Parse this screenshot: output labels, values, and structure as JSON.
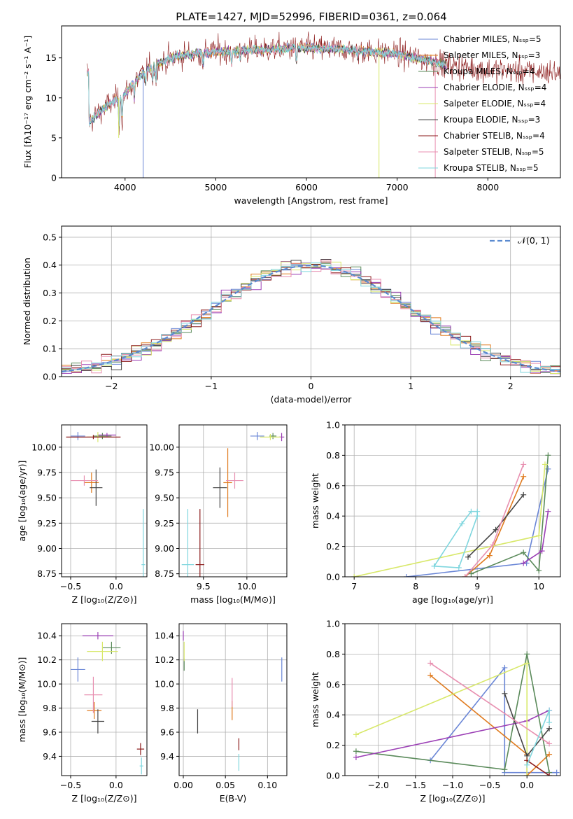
{
  "colors": [
    "#6a86d6",
    "#e07b1f",
    "#5a8a5a",
    "#9b3fb5",
    "#d8e86a",
    "#444444",
    "#8b1a1a",
    "#e88fb0",
    "#7fd6de"
  ],
  "chart_data": [
    {
      "id": "spectrum",
      "type": "line",
      "title": "PLATE=1427, MJD=52996, FIBERID=0361, z=0.064",
      "xlabel": "wavelength [Angstrom, rest frame]",
      "ylabel": "Flux [fλ10⁻¹⁷ erg cm⁻² s⁻¹ A⁻¹]",
      "xlim": [
        3300,
        8800
      ],
      "ylim": [
        0,
        19
      ],
      "xticks": [
        4000,
        5000,
        6000,
        7000,
        8000
      ],
      "yticks": [
        0,
        5,
        10,
        15
      ],
      "legend": "right",
      "series": [
        {
          "name": "Chabrier MILES, Nₛₛₚ=5"
        },
        {
          "name": "Salpeter MILES, Nₛₛₚ=3"
        },
        {
          "name": "Kroupa MILES, Nₛₛₚ=4"
        },
        {
          "name": "Chabrier ELODIE, Nₛₛₚ=4"
        },
        {
          "name": "Salpeter ELODIE, Nₛₛₚ=4"
        },
        {
          "name": "Kroupa ELODIE, Nₛₛₚ=3"
        },
        {
          "name": "Chabrier STELIB, Nₛₛₚ=4"
        },
        {
          "name": "Salpeter STELIB, Nₛₛₚ=5"
        },
        {
          "name": "Kroupa STELIB, Nₛₛₚ=5"
        }
      ],
      "continuum": {
        "x": [
          3600,
          3800,
          4000,
          4100,
          4300,
          4600,
          5000,
          5500,
          6000,
          6500,
          7000,
          7400,
          7600,
          8000,
          8400,
          8800
        ],
        "y": [
          7.0,
          9.0,
          10.5,
          12.0,
          14.0,
          15.3,
          15.8,
          16.0,
          16.3,
          16.0,
          15.5,
          14.5,
          14.0,
          13.5,
          13.3,
          13.2
        ]
      }
    },
    {
      "id": "residuals",
      "type": "line",
      "xlabel": "(data-model)/error",
      "ylabel": "Normed distribution",
      "xlim": [
        -2.5,
        2.5
      ],
      "ylim": [
        0,
        0.54
      ],
      "xticks": [
        -2,
        -1,
        0,
        1,
        2
      ],
      "yticks": [
        0.0,
        0.1,
        0.2,
        0.3,
        0.4,
        0.5
      ],
      "legend": "top-right",
      "gaussian_label": "𝒩(0, 1)"
    },
    {
      "id": "ageZ",
      "type": "scatter",
      "xlabel": "Z [log₁₀(Z/Z⊙)]",
      "ylabel": "age  [log₁₀(age/yr)]",
      "xlim": [
        -0.6,
        0.34
      ],
      "ylim": [
        8.72,
        10.22
      ],
      "xticks": [
        -0.5,
        0.0
      ],
      "yticks": [
        8.75,
        9.0,
        9.25,
        9.5,
        9.75,
        10.0
      ],
      "points": [
        {
          "c": 0,
          "x": -0.42,
          "y": 10.11,
          "xe": 0.08,
          "ye": 0.04
        },
        {
          "c": 1,
          "x": -0.27,
          "y": 9.65,
          "xe": 0.08,
          "ye": 0.1
        },
        {
          "c": 2,
          "x": -0.15,
          "y": 10.11,
          "xe": 0.1,
          "ye": 0.03
        },
        {
          "c": 3,
          "x": -0.1,
          "y": 10.12,
          "xe": 0.1,
          "ye": 0.02
        },
        {
          "c": 4,
          "x": -0.2,
          "y": 10.1,
          "xe": 0.12,
          "ye": 0.05
        },
        {
          "c": 5,
          "x": -0.22,
          "y": 9.6,
          "xe": 0.07,
          "ye": 0.18
        },
        {
          "c": 6,
          "x": -0.25,
          "y": 10.1,
          "xe": 0.3,
          "ye": 0.02
        },
        {
          "c": 7,
          "x": -0.35,
          "y": 9.67,
          "xe": 0.15,
          "ye": 0.05
        },
        {
          "c": 8,
          "x": 0.3,
          "y": 8.84,
          "xe": 0.02,
          "ye": 0.55
        }
      ]
    },
    {
      "id": "ageMass",
      "type": "scatter",
      "xlabel": "mass [log₁₀(M/M⊙)]",
      "xlim": [
        9.22,
        10.46
      ],
      "ylim": [
        8.72,
        10.22
      ],
      "xticks": [
        9.5,
        10.0
      ],
      "yticks": [
        8.75,
        9.0,
        9.25,
        9.5,
        9.75,
        10.0
      ],
      "points": [
        {
          "c": 0,
          "x": 10.12,
          "y": 10.11,
          "xe": 0.08,
          "ye": 0.04
        },
        {
          "c": 1,
          "x": 9.78,
          "y": 9.65,
          "xe": 0.05,
          "ye": 0.34
        },
        {
          "c": 2,
          "x": 10.3,
          "y": 10.11,
          "xe": 0.04,
          "ye": 0.03
        },
        {
          "c": 3,
          "x": 10.4,
          "y": 10.1,
          "xe": 0.03,
          "ye": 0.04
        },
        {
          "c": 4,
          "x": 10.27,
          "y": 10.1,
          "xe": 0.12,
          "ye": 0.03
        },
        {
          "c": 5,
          "x": 9.69,
          "y": 9.6,
          "xe": 0.08,
          "ye": 0.2
        },
        {
          "c": 6,
          "x": 9.46,
          "y": 8.84,
          "xe": 0.05,
          "ye": 0.55
        },
        {
          "c": 7,
          "x": 9.86,
          "y": 9.67,
          "xe": 0.1,
          "ye": 0.08
        },
        {
          "c": 8,
          "x": 9.32,
          "y": 8.84,
          "xe": 0.07,
          "ye": 0.55
        }
      ]
    },
    {
      "id": "weightAge",
      "type": "line",
      "xlabel": "age  [log₁₀(age/yr)]",
      "ylabel": "mass weight",
      "xlim": [
        6.85,
        10.35
      ],
      "ylim": [
        0,
        1.0
      ],
      "xticks": [
        7,
        8,
        9,
        10
      ],
      "yticks": [
        0.0,
        0.2,
        0.4,
        0.6,
        0.8,
        1.0
      ],
      "series": [
        {
          "c": 0,
          "x": [
            7.85,
            9.8,
            10.15
          ],
          "y": [
            0.0,
            0.09,
            0.71
          ]
        },
        {
          "c": 1,
          "x": [
            8.8,
            9.2,
            9.75
          ],
          "y": [
            0.0,
            0.14,
            0.66
          ]
        },
        {
          "c": 2,
          "x": [
            8.9,
            9.75,
            10.0,
            10.15
          ],
          "y": [
            0.02,
            0.16,
            0.04,
            0.8
          ]
        },
        {
          "c": 3,
          "x": [
            9.75,
            10.05,
            10.15
          ],
          "y": [
            0.09,
            0.17,
            0.43
          ]
        },
        {
          "c": 4,
          "x": [
            7.0,
            10.0,
            10.1
          ],
          "y": [
            0.0,
            0.27,
            0.74
          ]
        },
        {
          "c": 5,
          "x": [
            8.85,
            9.3,
            9.75
          ],
          "y": [
            0.13,
            0.31,
            0.54
          ]
        },
        {
          "c": 7,
          "x": [
            8.8,
            9.25,
            9.75
          ],
          "y": [
            0.0,
            0.21,
            0.74
          ]
        },
        {
          "c": 8,
          "x": [
            8.3,
            8.75,
            8.9,
            9.0,
            9.0,
            8.7,
            8.3
          ],
          "y": [
            0.07,
            0.35,
            0.43,
            0.43,
            0.4,
            0.06,
            0.07
          ]
        }
      ]
    },
    {
      "id": "massZ",
      "type": "scatter",
      "xlabel": "Z [log₁₀(Z/Z⊙)]",
      "ylabel": "mass [log₁₀(M/M⊙)]",
      "xlim": [
        -0.6,
        0.34
      ],
      "ylim": [
        9.24,
        10.5
      ],
      "xticks": [
        -0.5,
        0.0
      ],
      "yticks": [
        9.4,
        9.6,
        9.8,
        10.0,
        10.2,
        10.4
      ],
      "points": [
        {
          "c": 0,
          "x": -0.42,
          "y": 10.12,
          "xe": 0.08,
          "ye": 0.1
        },
        {
          "c": 1,
          "x": -0.24,
          "y": 9.78,
          "xe": 0.08,
          "ye": 0.07
        },
        {
          "c": 2,
          "x": -0.05,
          "y": 10.3,
          "xe": 0.1,
          "ye": 0.05
        },
        {
          "c": 3,
          "x": -0.2,
          "y": 10.4,
          "xe": 0.17,
          "ye": 0.03
        },
        {
          "c": 4,
          "x": -0.15,
          "y": 10.27,
          "xe": 0.17,
          "ye": 0.08
        },
        {
          "c": 5,
          "x": -0.2,
          "y": 9.69,
          "xe": 0.07,
          "ye": 0.1
        },
        {
          "c": 6,
          "x": 0.27,
          "y": 9.46,
          "xe": 0.04,
          "ye": 0.05
        },
        {
          "c": 7,
          "x": -0.25,
          "y": 9.91,
          "xe": 0.1,
          "ye": 0.15
        },
        {
          "c": 8,
          "x": 0.28,
          "y": 9.32,
          "xe": 0.02,
          "ye": 0.07
        }
      ]
    },
    {
      "id": "massEbv",
      "type": "scatter",
      "xlabel": "E(B-V)",
      "xlim": [
        -0.005,
        0.123
      ],
      "ylim": [
        9.24,
        10.5
      ],
      "xticks": [
        0.0,
        0.05,
        0.1
      ],
      "yticks": [
        9.4,
        9.6,
        9.8,
        10.0,
        10.2,
        10.4
      ],
      "points": [
        {
          "c": 0,
          "x": 0.117,
          "y": 10.12,
          "xe": 0.0,
          "ye": 0.1
        },
        {
          "c": 1,
          "x": 0.058,
          "y": 9.78,
          "xe": 0.0,
          "ye": 0.08
        },
        {
          "c": 2,
          "x": 0.001,
          "y": 10.16,
          "xe": 0.0,
          "ye": 0.05
        },
        {
          "c": 3,
          "x": 0.0,
          "y": 10.4,
          "xe": 0.0,
          "ye": 0.04
        },
        {
          "c": 4,
          "x": 0.001,
          "y": 10.27,
          "xe": 0.0,
          "ye": 0.08
        },
        {
          "c": 5,
          "x": 0.017,
          "y": 9.69,
          "xe": 0.0,
          "ye": 0.1
        },
        {
          "c": 6,
          "x": 0.066,
          "y": 9.5,
          "xe": 0.0,
          "ye": 0.05
        },
        {
          "c": 7,
          "x": 0.058,
          "y": 9.93,
          "xe": 0.0,
          "ye": 0.12
        },
        {
          "c": 8,
          "x": 0.066,
          "y": 9.35,
          "xe": 0.0,
          "ye": 0.07
        }
      ]
    },
    {
      "id": "weightZ",
      "type": "line",
      "xlabel": "Z [log₁₀(Z/Z⊙)]",
      "ylabel": "mass weight",
      "xlim": [
        -2.45,
        0.45
      ],
      "ylim": [
        0,
        1.0
      ],
      "xticks": [
        -2.0,
        -1.5,
        -1.0,
        -0.5,
        0.0
      ],
      "yticks": [
        0.0,
        0.2,
        0.4,
        0.6,
        0.8,
        1.0
      ],
      "series": [
        {
          "c": 0,
          "x": [
            -1.3,
            -0.3,
            -0.3,
            0.4
          ],
          "y": [
            0.1,
            0.71,
            0.02,
            0.02
          ]
        },
        {
          "c": 1,
          "x": [
            -1.3,
            0.0,
            0.0,
            0.3
          ],
          "y": [
            0.66,
            0.14,
            0.0,
            0.14
          ]
        },
        {
          "c": 2,
          "x": [
            -2.3,
            -0.3,
            0.0,
            0.3
          ],
          "y": [
            0.16,
            0.04,
            0.8,
            0.02
          ]
        },
        {
          "c": 3,
          "x": [
            -2.3,
            0.0,
            0.3
          ],
          "y": [
            0.12,
            0.36,
            0.43
          ]
        },
        {
          "c": 4,
          "x": [
            -2.3,
            0.0,
            0.0
          ],
          "y": [
            0.27,
            0.74,
            0.0
          ]
        },
        {
          "c": 5,
          "x": [
            -0.3,
            0.0,
            0.3
          ],
          "y": [
            0.54,
            0.13,
            0.31
          ]
        },
        {
          "c": 6,
          "x": [
            0.0,
            0.3
          ],
          "y": [
            0.1,
            0.0
          ]
        },
        {
          "c": 7,
          "x": [
            -1.3,
            0.3
          ],
          "y": [
            0.74,
            0.21
          ]
        },
        {
          "c": 8,
          "x": [
            0.0,
            0.3,
            0.3
          ],
          "y": [
            0.07,
            0.43,
            0.35
          ]
        }
      ]
    }
  ]
}
